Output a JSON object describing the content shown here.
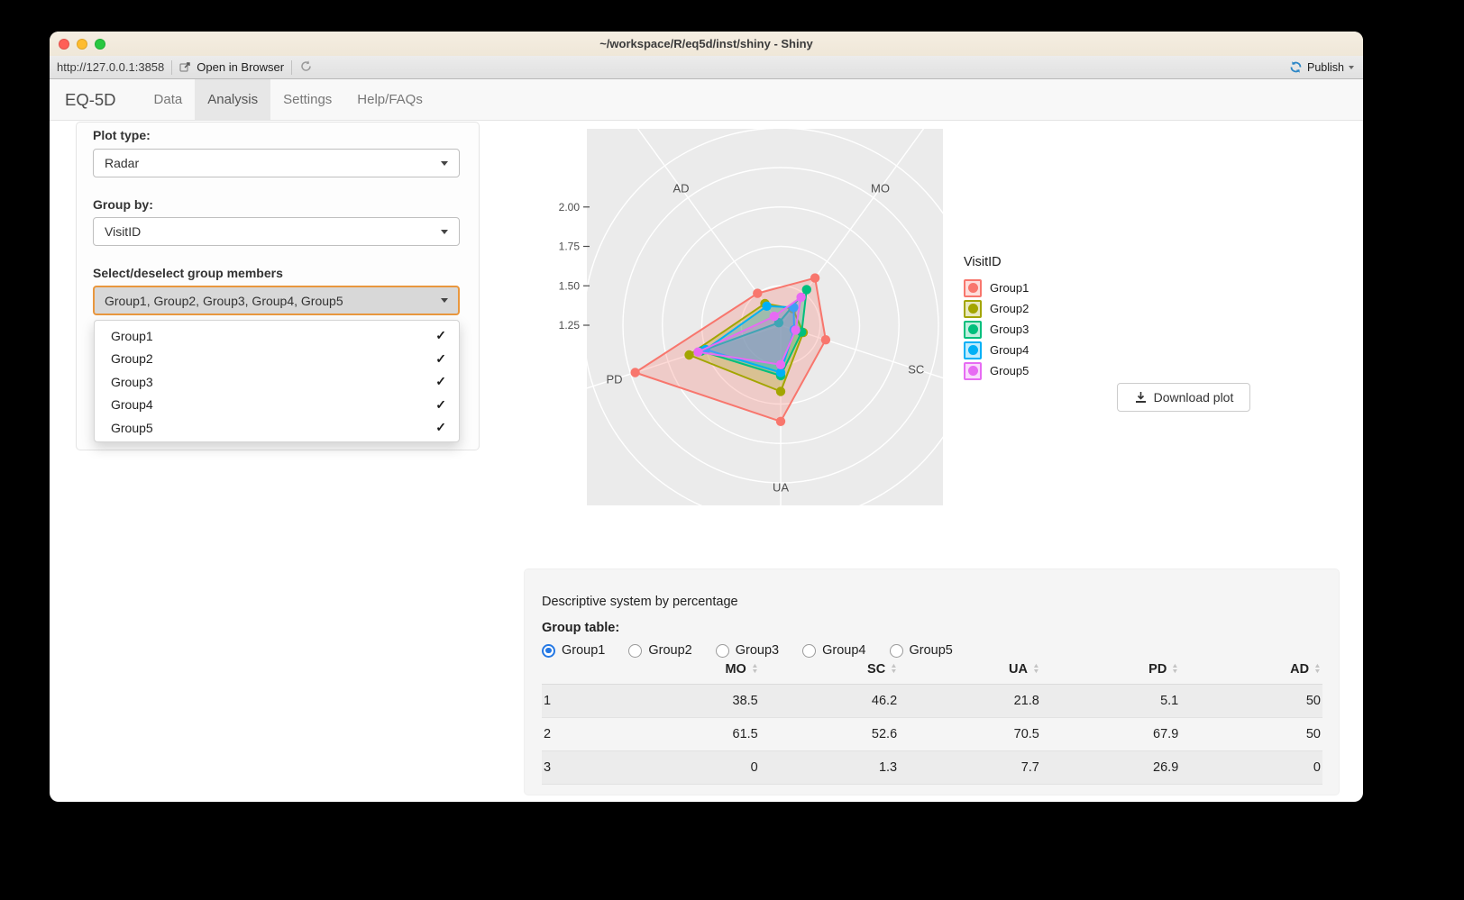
{
  "window": {
    "title": "~/workspace/R/eq5d/inst/shiny - Shiny"
  },
  "toolbar": {
    "url": "http://127.0.0.1:3858",
    "open_in_browser": "Open in Browser",
    "publish_label": "Publish"
  },
  "navbar": {
    "brand": "EQ-5D",
    "tabs": [
      {
        "label": "Data",
        "active": false
      },
      {
        "label": "Analysis",
        "active": true
      },
      {
        "label": "Settings",
        "active": false
      },
      {
        "label": "Help/FAQs",
        "active": false
      }
    ]
  },
  "sidebar": {
    "plot_type_label": "Plot type:",
    "plot_type_value": "Radar",
    "group_by_label": "Group by:",
    "group_by_value": "VisitID",
    "members_label": "Select/deselect group members",
    "members_value": "Group1, Group2, Group3, Group4, Group5",
    "members_menu": [
      {
        "label": "Group1",
        "checked": true
      },
      {
        "label": "Group2",
        "checked": true
      },
      {
        "label": "Group3",
        "checked": true
      },
      {
        "label": "Group4",
        "checked": true
      },
      {
        "label": "Group5",
        "checked": true
      }
    ]
  },
  "chart_data": {
    "type": "radar",
    "legend_title": "VisitID",
    "legend_position": "right",
    "grid": true,
    "axes": [
      "MO",
      "SC",
      "UA",
      "PD",
      "AD"
    ],
    "radial_ticks": [
      "2.00",
      "1.75",
      "1.50",
      "1.25"
    ],
    "radial_tick_values": [
      2.0,
      1.75,
      1.5,
      1.25
    ],
    "scale": {
      "center_value": 1.25,
      "ring_values": [
        1.5,
        1.75,
        2.0,
        2.25,
        2.5
      ],
      "rlim": [
        1.25,
        2.3
      ]
    },
    "series": [
      {
        "name": "Group1",
        "color": "#F8766D",
        "values": {
          "MO": 1.62,
          "SC": 1.55,
          "UA": 1.86,
          "PD": 2.22,
          "AD": 1.5
        }
      },
      {
        "name": "Group2",
        "color": "#A3A500",
        "values": {
          "MO": 1.38,
          "SC": 1.4,
          "UA": 1.67,
          "PD": 1.86,
          "AD": 1.42
        }
      },
      {
        "name": "Group3",
        "color": "#00BF7D",
        "values": {
          "MO": 1.53,
          "SC": 1.39,
          "UA": 1.57,
          "PD": 1.78,
          "AD": 1.27
        }
      },
      {
        "name": "Group4",
        "color": "#00B0F6",
        "values": {
          "MO": 1.39,
          "SC": 1.34,
          "UA": 1.55,
          "PD": 1.75,
          "AD": 1.4
        }
      },
      {
        "name": "Group5",
        "color": "#E76BF3",
        "values": {
          "MO": 1.47,
          "SC": 1.35,
          "UA": 1.5,
          "PD": 1.8,
          "AD": 1.32
        }
      }
    ]
  },
  "plot_actions": {
    "download_label": "Download plot"
  },
  "bottom": {
    "section_title": "Descriptive system by percentage",
    "group_table_label": "Group table:",
    "radios": [
      {
        "label": "Group1",
        "selected": true
      },
      {
        "label": "Group2",
        "selected": false
      },
      {
        "label": "Group3",
        "selected": false
      },
      {
        "label": "Group4",
        "selected": false
      },
      {
        "label": "Group5",
        "selected": false
      }
    ],
    "table": {
      "columns": [
        "",
        "MO",
        "SC",
        "UA",
        "PD",
        "AD"
      ],
      "rows": [
        [
          "1",
          "38.5",
          "46.2",
          "21.8",
          "5.1",
          "50"
        ],
        [
          "2",
          "61.5",
          "52.6",
          "70.5",
          "67.9",
          "50"
        ],
        [
          "3",
          "0",
          "1.3",
          "7.7",
          "26.9",
          "0"
        ]
      ]
    }
  },
  "colors": {
    "titlebar": "#f2ebdd",
    "publish_blue": "#2b86c6",
    "picker_border": "#e9973e",
    "panel_gray": "#EBEBEB",
    "radio_blue": "#2478e4"
  }
}
